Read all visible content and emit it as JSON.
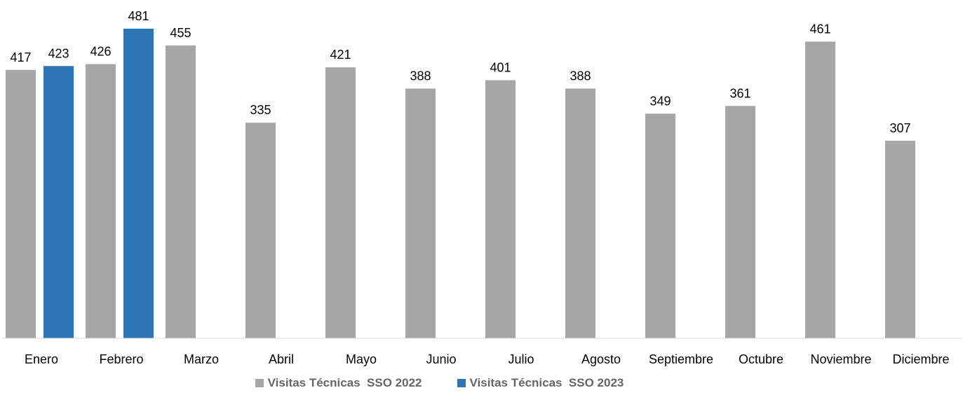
{
  "chart_data": {
    "type": "bar",
    "categories": [
      "Enero",
      "Febrero",
      "Marzo",
      "Abril",
      "Mayo",
      "Junio",
      "Julio",
      "Agosto",
      "Septiembre",
      "Octubre",
      "Noviembre",
      "Diciembre"
    ],
    "series": [
      {
        "name": "Visitas Técnicas  SSO 2022",
        "color": "#A6A6A6",
        "values": [
          417,
          426,
          455,
          335,
          421,
          388,
          401,
          388,
          349,
          361,
          461,
          307
        ]
      },
      {
        "name": "Visitas Técnicas  SSO 2023",
        "color": "#2E75B6",
        "values": [
          423,
          481,
          null,
          null,
          null,
          null,
          null,
          null,
          null,
          null,
          null,
          null
        ]
      }
    ],
    "ylim": [
      0,
      530
    ],
    "grid": false,
    "legend_position": "bottom"
  }
}
